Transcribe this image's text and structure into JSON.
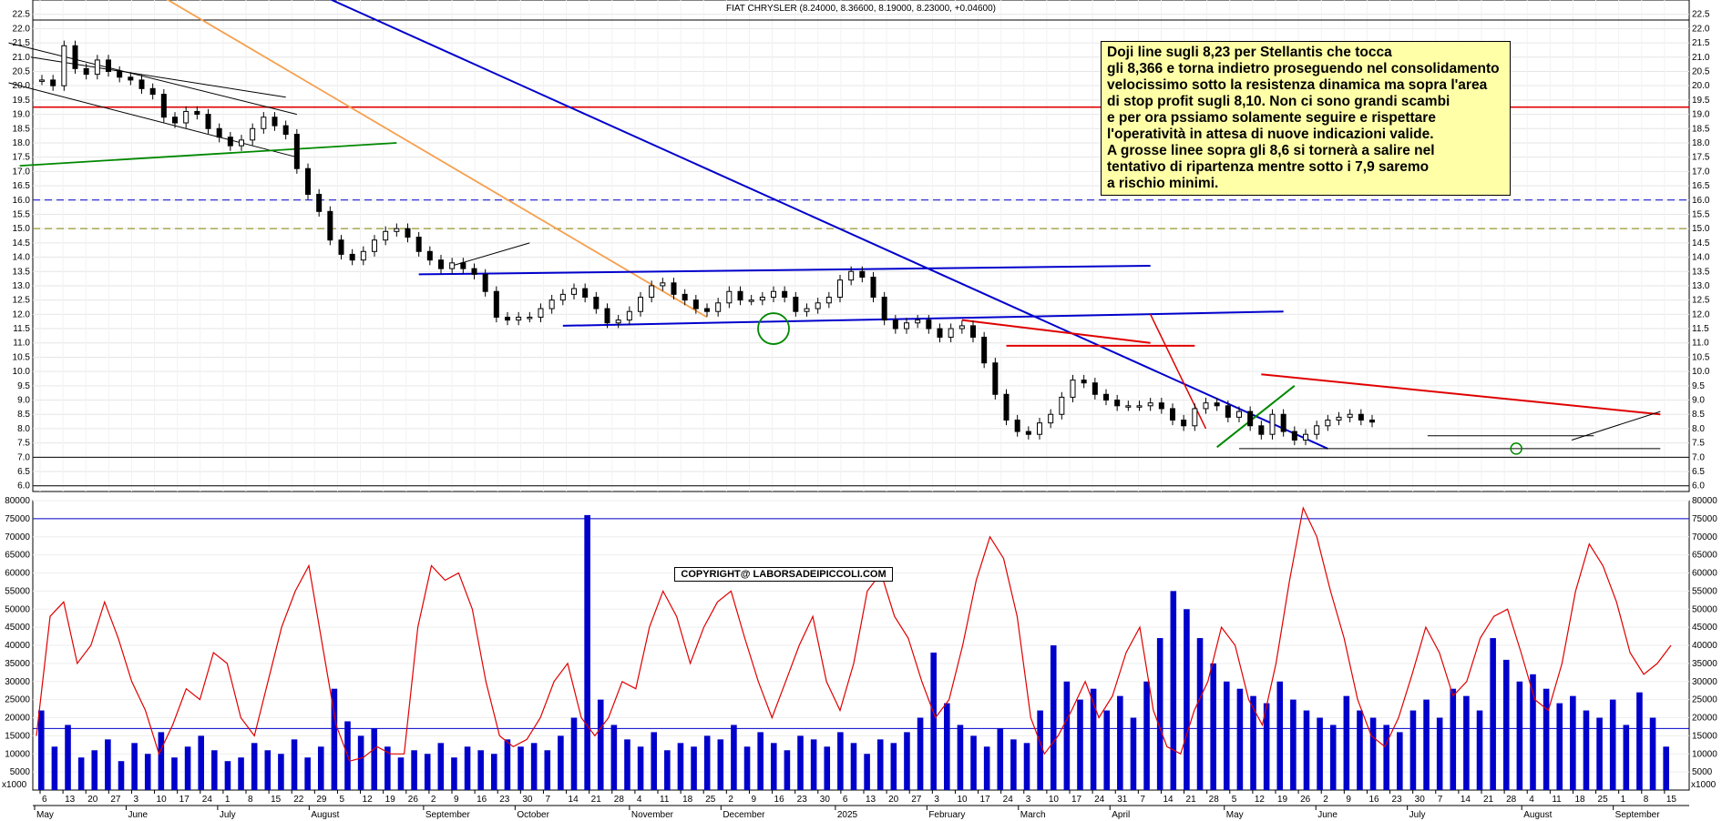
{
  "header": {
    "title": "FIAT CHRYSLER (8.24000, 8.36600, 8.19000, 8.23000, +0.04600)"
  },
  "annotation": {
    "lines": [
      "Doji line sugli 8,23 per Stellantis che tocca",
      "gli 8,366 e torna indietro proseguendo nel consolidamento",
      "velocissimo sotto la resistenza dinamica ma sopra l'area",
      "di stop profit sugli 8,10. Non ci sono grandi scambi",
      "e per ora pssiamo solamente seguire e rispettare",
      "l'operatività in attesa di nuove indicazioni valide.",
      "A grosse linee sopra gli 8,6 si tornerà a salire nel",
      "tentativo di ripartenza mentre sotto i 7,9 saremo",
      "a rischio minimi."
    ]
  },
  "copyright": "COPYRIGHT@ LABORSADEIPICCOLI.COM",
  "colors": {
    "blue": "#0000cc",
    "red": "#e00000",
    "green": "#008800",
    "orange": "#f5a050",
    "candle": "#000000"
  },
  "chart_data": [
    {
      "type": "candlestick",
      "ylim": [
        5.8,
        23.0
      ],
      "price_ticks": [
        "6.0",
        "6.5",
        "7.0",
        "7.5",
        "8.0",
        "8.5",
        "9.0",
        "9.5",
        "10.0",
        "10.5",
        "11.0",
        "11.5",
        "12.0",
        "12.5",
        "13.0",
        "13.5",
        "14.0",
        "14.5",
        "15.0",
        "15.5",
        "16.0",
        "16.5",
        "17.0",
        "17.5",
        "18.0",
        "18.5",
        "19.0",
        "19.5",
        "20.0",
        "20.5",
        "21.0",
        "21.5",
        "22.0",
        "22.5"
      ],
      "day_ticks": [
        "6",
        "13",
        "20",
        "27",
        "3",
        "10",
        "17",
        "24",
        "1",
        "8",
        "15",
        "22",
        "29",
        "5",
        "12",
        "19",
        "26",
        "2",
        "9",
        "16",
        "23",
        "30",
        "7",
        "14",
        "21",
        "28",
        "4",
        "11",
        "18",
        "25",
        "2",
        "9",
        "16",
        "23",
        "30",
        "6",
        "13",
        "20",
        "27",
        "3",
        "10",
        "17",
        "24",
        "3",
        "10",
        "17",
        "24",
        "31",
        "7",
        "14",
        "21",
        "28",
        "5",
        "12",
        "19",
        "26",
        "2",
        "9",
        "16",
        "23",
        "30",
        "7",
        "14",
        "21",
        "28",
        "4",
        "11",
        "18",
        "25",
        "1",
        "8",
        "15"
      ],
      "month_ticks": [
        "May",
        "June",
        "July",
        "August",
        "September",
        "October",
        "November",
        "December",
        "2025",
        "February",
        "March",
        "April",
        "May",
        "June",
        "July",
        "August",
        "September"
      ],
      "horizontal_levels": [
        {
          "value": 22.3,
          "style": "solid",
          "color": "#000000"
        },
        {
          "value": 19.25,
          "style": "solid",
          "color": "#e00000"
        },
        {
          "value": 16.0,
          "style": "dashed",
          "color": "#0000cc"
        },
        {
          "value": 15.0,
          "style": "dashed",
          "color": "#808000"
        },
        {
          "value": 7.0,
          "style": "solid",
          "color": "#000000"
        },
        {
          "value": 6.0,
          "style": "solid",
          "color": "#000000"
        }
      ],
      "series": [
        {
          "values": [
            20.2,
            20.0,
            21.4,
            20.6,
            20.4,
            20.9,
            20.5,
            20.3,
            20.2,
            19.9,
            19.7,
            18.9,
            18.7,
            19.1,
            19.0,
            18.5,
            18.2,
            17.9,
            18.1,
            18.5,
            18.9,
            18.6,
            18.3,
            17.1,
            16.2,
            15.6,
            14.6,
            14.1,
            13.9,
            14.2,
            14.6,
            14.9,
            15.0,
            14.7,
            14.2,
            13.9,
            13.6,
            13.8,
            13.6,
            13.4,
            12.8,
            11.9,
            11.8,
            11.9,
            11.9,
            12.2,
            12.5,
            12.7,
            12.9,
            12.6,
            12.2,
            11.7,
            11.8,
            12.1,
            12.6,
            13.0,
            13.1,
            12.7,
            12.5,
            12.2,
            12.1,
            12.4,
            12.8,
            12.5,
            12.5,
            12.6,
            12.8,
            12.6,
            12.1,
            12.2,
            12.4,
            12.6,
            13.2,
            13.5,
            13.3,
            12.6,
            11.8,
            11.5,
            11.7,
            11.8,
            11.5,
            11.2,
            11.5,
            11.6,
            11.2,
            10.3,
            9.2,
            8.3,
            7.9,
            7.8,
            8.2,
            8.5,
            9.1,
            9.7,
            9.6,
            9.2,
            9.0,
            8.8,
            8.8,
            8.8,
            8.9,
            8.7,
            8.3,
            8.1,
            8.7,
            8.9,
            8.8,
            8.4,
            8.6,
            8.1,
            7.8,
            8.5,
            7.9,
            7.6,
            7.8,
            8.1,
            8.3,
            8.4,
            8.5,
            8.3,
            8.23
          ]
        }
      ]
    },
    {
      "type": "bar",
      "ylim": [
        0,
        80000
      ],
      "volume_ticks": [
        "5000",
        "10000",
        "15000",
        "20000",
        "25000",
        "30000",
        "35000",
        "40000",
        "45000",
        "50000",
        "55000",
        "60000",
        "65000",
        "70000",
        "75000",
        "80000"
      ],
      "unit_label": "x1000",
      "reference_levels": [
        75000,
        17000
      ],
      "series": [
        {
          "values": [
            22000,
            12000,
            18000,
            9000,
            11000,
            14000,
            8000,
            13000,
            10000,
            16000,
            9000,
            12000,
            15000,
            11000,
            8000,
            9000,
            13000,
            11000,
            10000,
            14000,
            9000,
            12000,
            28000,
            19000,
            15000,
            17000,
            12000,
            9000,
            11000,
            10000,
            13000,
            9000,
            12000,
            11000,
            10000,
            14000,
            12000,
            13000,
            11000,
            15000,
            20000,
            76000,
            25000,
            18000,
            14000,
            12000,
            16000,
            11000,
            13000,
            12000,
            15000,
            14000,
            18000,
            12000,
            16000,
            13000,
            11000,
            15000,
            14000,
            12000,
            16000,
            13000,
            10000,
            14000,
            13000,
            16000,
            20000,
            38000,
            24000,
            18000,
            15000,
            12000,
            17000,
            14000,
            13000,
            22000,
            40000,
            30000,
            25000,
            28000,
            22000,
            26000,
            20000,
            30000,
            42000,
            55000,
            50000,
            42000,
            35000,
            30000,
            28000,
            26000,
            24000,
            30000,
            25000,
            22000,
            20000,
            18000,
            26000,
            22000,
            20000,
            18000,
            16000,
            22000,
            25000,
            20000,
            28000,
            26000,
            22000,
            42000,
            36000,
            30000,
            32000,
            28000,
            24000,
            26000,
            22000,
            20000,
            25000,
            18000,
            27000,
            20000,
            12000
          ]
        },
        {
          "name": "",
          "values": [
            15000,
            48000,
            52000,
            35000,
            40000,
            52000,
            42000,
            30000,
            22000,
            10000,
            18000,
            28000,
            25000,
            38000,
            35000,
            20000,
            15000,
            30000,
            45000,
            55000,
            62000,
            40000,
            18000,
            8000,
            9000,
            12000,
            10000,
            10000,
            45000,
            62000,
            58000,
            60000,
            50000,
            30000,
            15000,
            12000,
            14000,
            20000,
            30000,
            35000,
            20000,
            15000,
            20000,
            30000,
            28000,
            45000,
            55000,
            48000,
            35000,
            45000,
            52000,
            55000,
            42000,
            30000,
            20000,
            30000,
            40000,
            48000,
            30000,
            22000,
            35000,
            55000,
            60000,
            48000,
            42000,
            30000,
            20000,
            25000,
            40000,
            58000,
            70000,
            64000,
            48000,
            20000,
            10000,
            15000,
            22000,
            30000,
            20000,
            26000,
            38000,
            45000,
            22000,
            12000,
            10000,
            22000,
            30000,
            45000,
            40000,
            25000,
            18000,
            35000,
            58000,
            78000,
            70000,
            55000,
            42000,
            25000,
            15000,
            12000,
            20000,
            32000,
            45000,
            38000,
            26000,
            30000,
            42000,
            48000,
            50000,
            38000,
            25000,
            22000,
            35000,
            55000,
            68000,
            62000,
            52000,
            38000,
            32000,
            35000,
            40000
          ]
        }
      ]
    }
  ]
}
